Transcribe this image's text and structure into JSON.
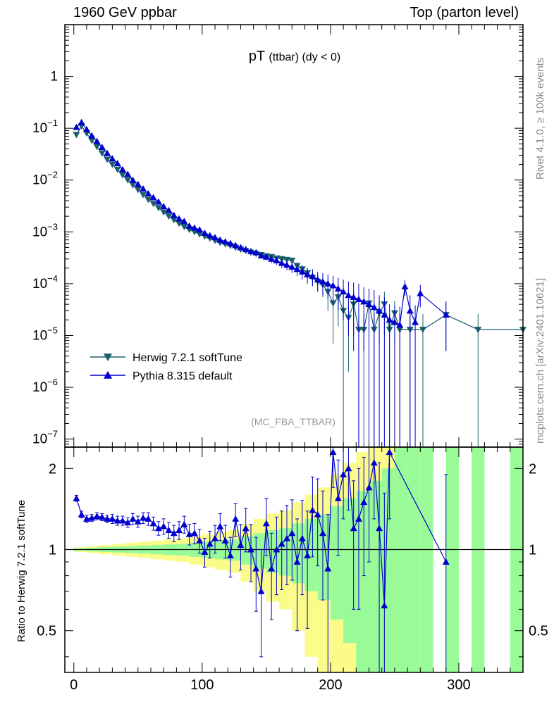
{
  "header": {
    "left": "1960 GeV ppbar",
    "right": "Top (parton level)"
  },
  "side_labels": {
    "top": "Rivet 4.1.0, ≥ 100k events",
    "bottom": "mcplots.cern.ch [arXiv:2401.10621]"
  },
  "chart_data": {
    "type": "line",
    "title": "pT",
    "title_sub": "(ttbar)  (dy < 0)",
    "analysis": "(MC_FBA_TTBAR)",
    "xlabel": "",
    "xlim": [
      -7,
      350
    ],
    "x_ticks": [
      "0",
      "100",
      "200",
      "300"
    ],
    "x_tick_values": [
      0,
      100,
      200,
      300
    ],
    "main": {
      "yscale": "log",
      "ylim": [
        7e-08,
        10
      ],
      "y_ticks": [
        "10^{-7}",
        "10^{-6}",
        "10^{-5}",
        "10^{-4}",
        "10^{-3}",
        "10^{-2}",
        "10^{-1}",
        "1"
      ],
      "y_tick_values": [
        1e-07,
        1e-06,
        1e-05,
        0.0001,
        0.001,
        0.01,
        0.1,
        1
      ],
      "legend": [
        {
          "name": "Herwig 7.2.1 softTune",
          "color": "#1b5e6b",
          "marker": "triangle-down"
        },
        {
          "name": "Pythia 8.315 default",
          "color": "#0000cc",
          "marker": "triangle-up"
        }
      ],
      "series": [
        {
          "name": "Herwig 7.2.1 softTune",
          "color": "#1b5e6b",
          "marker": "triangle-down",
          "x": [
            2,
            6,
            10,
            14,
            18,
            22,
            26,
            30,
            34,
            38,
            42,
            46,
            50,
            54,
            58,
            62,
            66,
            70,
            74,
            78,
            82,
            86,
            90,
            94,
            98,
            102,
            106,
            110,
            114,
            118,
            122,
            126,
            130,
            134,
            138,
            142,
            146,
            150,
            154,
            158,
            162,
            166,
            170,
            174,
            178,
            182,
            186,
            190,
            194,
            198,
            202,
            206,
            210,
            214,
            218,
            222,
            226,
            230,
            234,
            238,
            242,
            246,
            250,
            254,
            262,
            272,
            290,
            315,
            350
          ],
          "values": [
            0.075,
            0.11,
            0.08,
            0.058,
            0.044,
            0.033,
            0.025,
            0.02,
            0.016,
            0.0125,
            0.01,
            0.008,
            0.0065,
            0.0052,
            0.0042,
            0.0035,
            0.0029,
            0.0024,
            0.002,
            0.0017,
            0.00145,
            0.00125,
            0.0011,
            0.001,
            0.0009,
            0.00082,
            0.00075,
            0.00068,
            0.00062,
            0.00058,
            0.00054,
            0.0005,
            0.00046,
            0.00043,
            0.0004,
            0.00038,
            0.00036,
            0.00034,
            0.00033,
            0.00031,
            0.0003,
            0.00029,
            0.00028,
            0.00022,
            0.00019,
            0.00016,
            0.00013,
            0.00011,
            9.5e-05,
            7e-05,
            4.2e-05,
            5.5e-05,
            3e-05,
            2.2e-05,
            4e-05,
            1.3e-05,
            1.3e-05,
            4.2e-05,
            1.3e-05,
            2.7e-05,
            4e-05,
            1.3e-05,
            2.7e-05,
            1.3e-05,
            1.3e-05,
            1.3e-05,
            2.5e-05,
            1.3e-05,
            1.3e-05
          ],
          "errors": [
            0.004,
            0.005,
            0.004,
            0.003,
            0.002,
            0.0016,
            0.0012,
            0.0009,
            0.0007,
            0.0005,
            0.0004,
            0.00032,
            0.00026,
            0.0002,
            0.00017,
            0.00014,
            0.00012,
            0.0001,
            9e-05,
            8e-05,
            7e-05,
            6e-05,
            6e-05,
            5e-05,
            5e-05,
            5e-05,
            5e-05,
            4e-05,
            4e-05,
            4e-05,
            4e-05,
            4e-05,
            4e-05,
            4e-05,
            4e-05,
            4e-05,
            4e-05,
            4e-05,
            4e-05,
            4e-05,
            4e-05,
            4e-05,
            4e-05,
            4e-05,
            4e-05,
            4e-05,
            4e-05,
            4e-05,
            4e-05,
            4e-05,
            3.5e-05,
            4e-05,
            3e-05,
            2e-05,
            3e-05,
            1.3e-05,
            1.3e-05,
            3e-05,
            1.3e-05,
            2e-05,
            3e-05,
            1.3e-05,
            2e-05,
            1.3e-05,
            1.3e-05,
            1.3e-05,
            2e-05,
            1.3e-05,
            1.3e-05
          ]
        },
        {
          "name": "Pythia 8.315 default",
          "color": "#0000cc",
          "marker": "triangle-up",
          "x": [
            2,
            6,
            10,
            14,
            18,
            22,
            26,
            30,
            34,
            38,
            42,
            46,
            50,
            54,
            58,
            62,
            66,
            70,
            74,
            78,
            82,
            86,
            90,
            94,
            98,
            102,
            106,
            110,
            114,
            118,
            122,
            126,
            130,
            134,
            138,
            142,
            146,
            150,
            154,
            158,
            162,
            166,
            170,
            174,
            178,
            182,
            186,
            190,
            194,
            198,
            202,
            206,
            210,
            214,
            218,
            222,
            226,
            230,
            234,
            238,
            242,
            246,
            250,
            254,
            258,
            262,
            266,
            270,
            290
          ],
          "values": [
            0.105,
            0.13,
            0.095,
            0.072,
            0.056,
            0.043,
            0.033,
            0.026,
            0.021,
            0.016,
            0.013,
            0.01,
            0.0083,
            0.0068,
            0.0055,
            0.0046,
            0.0038,
            0.0031,
            0.0026,
            0.0021,
            0.0018,
            0.0016,
            0.0013,
            0.0012,
            0.0011,
            0.00095,
            0.00085,
            0.00078,
            0.0007,
            0.00065,
            0.0006,
            0.00055,
            0.0005,
            0.00046,
            0.00042,
            0.0004,
            0.00035,
            0.00033,
            0.0003,
            0.00028,
            0.00025,
            0.00023,
            0.00021,
            0.00019,
            0.00017,
            0.00015,
            0.00014,
            0.00012,
            0.00011,
            0.0001,
            9.2e-05,
            8e-05,
            7e-05,
            6e-05,
            5.5e-05,
            5e-05,
            4.5e-05,
            4e-05,
            3.5e-05,
            3e-05,
            2.5e-05,
            2e-05,
            1.8e-05,
            1.6e-05,
            8.8e-05,
            3e-05,
            1.8e-05,
            6.5e-05,
            2.5e-05
          ],
          "errors": [
            0.005,
            0.006,
            0.005,
            0.004,
            0.003,
            0.002,
            0.0016,
            0.0012,
            0.0009,
            0.0007,
            0.0005,
            0.0004,
            0.0003,
            0.00025,
            0.0002,
            0.00017,
            0.00014,
            0.00012,
            0.0001,
            9e-05,
            8e-05,
            7e-05,
            6e-05,
            6e-05,
            5e-05,
            5e-05,
            5e-05,
            5e-05,
            5e-05,
            5e-05,
            5e-05,
            5e-05,
            5e-05,
            5e-05,
            5e-05,
            5e-05,
            5e-05,
            5e-05,
            5e-05,
            5e-05,
            5e-05,
            5e-05,
            5e-05,
            5e-05,
            5e-05,
            5e-05,
            5e-05,
            5e-05,
            5e-05,
            5e-05,
            5e-05,
            5e-05,
            5e-05,
            5e-05,
            5e-05,
            5e-05,
            4e-05,
            4e-05,
            4e-05,
            3e-05,
            3e-05,
            2e-05,
            2e-05,
            2e-05,
            3e-05,
            3e-05,
            2e-05,
            3e-05,
            2e-05
          ]
        }
      ]
    },
    "ratio": {
      "ylabel": "Ratio to Herwig 7.2.1 softTune",
      "yscale": "log",
      "ylim": [
        0.35,
        2.4
      ],
      "y_ticks": [
        "0.5",
        "1",
        "2"
      ],
      "y_tick_values": [
        0.5,
        1,
        2
      ],
      "reference": 1,
      "band_x_edges": [
        0,
        10,
        20,
        30,
        40,
        50,
        60,
        70,
        80,
        90,
        100,
        110,
        120,
        130,
        140,
        150,
        160,
        170,
        180,
        190,
        200,
        210,
        220,
        230,
        240,
        250,
        260,
        270,
        280,
        290,
        300,
        310,
        320,
        340,
        350
      ],
      "band_green": [
        0.01,
        0.015,
        0.02,
        0.025,
        0.03,
        0.035,
        0.04,
        0.045,
        0.05,
        0.06,
        0.07,
        0.08,
        0.09,
        0.12,
        0.15,
        0.18,
        0.2,
        0.25,
        0.3,
        0.35,
        0.45,
        0.55,
        0.65,
        0.8,
        1.0,
        1.5,
        1.5,
        1.5,
        0,
        1.5,
        0,
        1.5,
        0,
        1.5
      ],
      "band_yellow": [
        0.02,
        0.03,
        0.04,
        0.05,
        0.06,
        0.07,
        0.08,
        0.09,
        0.1,
        0.12,
        0.14,
        0.16,
        0.18,
        0.24,
        0.3,
        0.36,
        0.4,
        0.5,
        0.6,
        0.7,
        0.9,
        1.1,
        1.3,
        1.6,
        2.0,
        3.0,
        3.0,
        3.0,
        0,
        3.0,
        0,
        3.0,
        0,
        3.0
      ],
      "series": {
        "name": "Pythia 8.315 default",
        "color": "#0000cc",
        "x": [
          2,
          6,
          10,
          14,
          18,
          22,
          26,
          30,
          34,
          38,
          42,
          46,
          50,
          54,
          58,
          62,
          66,
          70,
          74,
          78,
          82,
          86,
          90,
          94,
          98,
          102,
          106,
          110,
          114,
          118,
          122,
          126,
          130,
          134,
          138,
          142,
          146,
          150,
          154,
          158,
          162,
          166,
          170,
          174,
          178,
          182,
          186,
          190,
          194,
          198,
          202,
          206,
          210,
          214,
          218,
          222,
          226,
          230,
          234,
          238,
          242,
          246,
          290
        ],
        "values": [
          1.55,
          1.35,
          1.3,
          1.31,
          1.33,
          1.32,
          1.3,
          1.3,
          1.28,
          1.28,
          1.26,
          1.3,
          1.27,
          1.31,
          1.3,
          1.25,
          1.2,
          1.22,
          1.18,
          1.15,
          1.18,
          1.24,
          1.14,
          1.15,
          1.08,
          0.98,
          1.05,
          1.1,
          1.22,
          1.08,
          0.95,
          1.3,
          1.04,
          1.2,
          1.0,
          0.85,
          0.7,
          1.25,
          0.85,
          1.0,
          1.05,
          1.1,
          1.15,
          0.9,
          1.1,
          0.95,
          1.4,
          1.35,
          1.15,
          0.85,
          2.3,
          1.55,
          1.9,
          2.0,
          1.2,
          1.3,
          1.5,
          1.7,
          2.1,
          1.2,
          0.62,
          2.3,
          0.9
        ],
        "errors": [
          0.04,
          0.04,
          0.04,
          0.04,
          0.04,
          0.04,
          0.04,
          0.05,
          0.05,
          0.05,
          0.05,
          0.06,
          0.06,
          0.06,
          0.07,
          0.07,
          0.07,
          0.08,
          0.08,
          0.08,
          0.09,
          0.09,
          0.1,
          0.1,
          0.11,
          0.12,
          0.12,
          0.13,
          0.14,
          0.15,
          0.16,
          0.18,
          0.2,
          0.22,
          0.24,
          0.26,
          0.3,
          0.3,
          0.3,
          0.32,
          0.34,
          0.36,
          0.38,
          0.4,
          0.42,
          0.44,
          0.46,
          0.48,
          0.5,
          0.5,
          0.6,
          0.6,
          0.6,
          0.6,
          0.6,
          0.7,
          0.7,
          0.8,
          0.8,
          0.9,
          1.0,
          1.0,
          1.0
        ]
      }
    }
  }
}
